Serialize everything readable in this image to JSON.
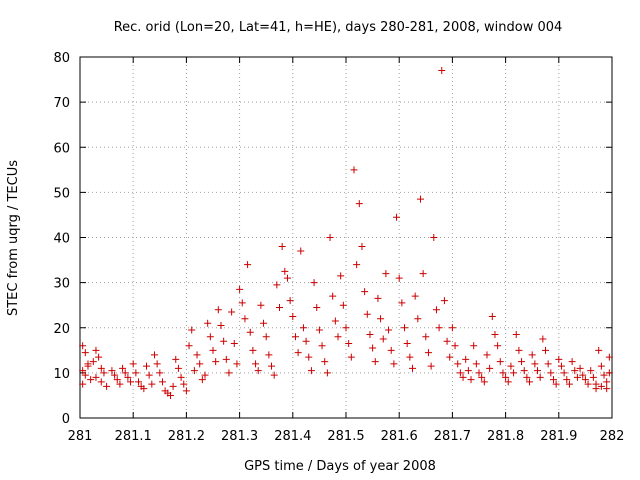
{
  "chart_data": {
    "type": "scatter",
    "title": "Rec. orid (Lon=20, Lat=41, h=HE), days 280-281, 2008, window 004",
    "xlabel": "GPS time / Days of year 2008",
    "ylabel": "STEC from uqrg / TECUs",
    "xlim": [
      281,
      282
    ],
    "ylim": [
      0,
      80
    ],
    "x_ticks": [
      281,
      281.1,
      281.2,
      281.3,
      281.4,
      281.5,
      281.6,
      281.7,
      281.8,
      281.9,
      282
    ],
    "x_tick_labels": [
      "281",
      "281.1",
      "281.2",
      "281.3",
      "281.4",
      "281.5",
      "281.6",
      "281.7",
      "281.8",
      "281.9",
      "282"
    ],
    "y_ticks": [
      0,
      10,
      20,
      30,
      40,
      50,
      60,
      70,
      80
    ],
    "y_tick_labels": [
      "0",
      "10",
      "20",
      "30",
      "40",
      "50",
      "60",
      "70",
      "80"
    ],
    "grid": true,
    "marker": "plus",
    "marker_color": "#cc0000",
    "axis_color": "#000000",
    "grid_color": "#a0a0a0",
    "series": [
      {
        "name": "STEC",
        "points": [
          [
            281.005,
            16.0
          ],
          [
            281.01,
            14.5
          ],
          [
            281.015,
            12.0
          ],
          [
            281.005,
            10.5
          ],
          [
            281.01,
            9.5
          ],
          [
            281.02,
            8.5
          ],
          [
            281.005,
            7.5
          ],
          [
            281.015,
            11.5
          ],
          [
            281.03,
            15.0
          ],
          [
            281.035,
            13.5
          ],
          [
            281.04,
            11.0
          ],
          [
            281.045,
            10.0
          ],
          [
            281.03,
            9.0
          ],
          [
            281.04,
            8.0
          ],
          [
            281.05,
            7.0
          ],
          [
            281.025,
            12.5
          ],
          [
            281.06,
            10.5
          ],
          [
            281.065,
            9.5
          ],
          [
            281.07,
            8.5
          ],
          [
            281.075,
            7.5
          ],
          [
            281.08,
            11.0
          ],
          [
            281.085,
            10.0
          ],
          [
            281.09,
            9.0
          ],
          [
            281.095,
            8.0
          ],
          [
            281.1,
            12.0
          ],
          [
            281.105,
            10.0
          ],
          [
            281.11,
            8.0
          ],
          [
            281.115,
            7.0
          ],
          [
            281.12,
            6.5
          ],
          [
            281.125,
            11.5
          ],
          [
            281.13,
            9.5
          ],
          [
            281.135,
            7.5
          ],
          [
            281.14,
            14.0
          ],
          [
            281.145,
            12.0
          ],
          [
            281.15,
            10.0
          ],
          [
            281.155,
            8.0
          ],
          [
            281.16,
            6.0
          ],
          [
            281.165,
            5.5
          ],
          [
            281.17,
            5.0
          ],
          [
            281.175,
            7.0
          ],
          [
            281.18,
            13.0
          ],
          [
            281.185,
            11.0
          ],
          [
            281.19,
            9.0
          ],
          [
            281.195,
            7.5
          ],
          [
            281.2,
            6.0
          ],
          [
            281.205,
            16.0
          ],
          [
            281.21,
            19.5
          ],
          [
            281.215,
            10.5
          ],
          [
            281.22,
            14.0
          ],
          [
            281.225,
            12.0
          ],
          [
            281.23,
            8.5
          ],
          [
            281.235,
            9.5
          ],
          [
            281.24,
            21.0
          ],
          [
            281.245,
            18.0
          ],
          [
            281.25,
            15.0
          ],
          [
            281.255,
            12.5
          ],
          [
            281.26,
            24.0
          ],
          [
            281.265,
            20.5
          ],
          [
            281.27,
            17.0
          ],
          [
            281.275,
            13.0
          ],
          [
            281.28,
            10.0
          ],
          [
            281.285,
            23.5
          ],
          [
            281.29,
            16.5
          ],
          [
            281.295,
            12.0
          ],
          [
            281.3,
            28.5
          ],
          [
            281.305,
            25.5
          ],
          [
            281.31,
            22.0
          ],
          [
            281.315,
            34.0
          ],
          [
            281.32,
            19.0
          ],
          [
            281.325,
            15.0
          ],
          [
            281.33,
            12.0
          ],
          [
            281.335,
            10.5
          ],
          [
            281.34,
            25.0
          ],
          [
            281.345,
            21.0
          ],
          [
            281.35,
            18.0
          ],
          [
            281.355,
            14.0
          ],
          [
            281.36,
            11.5
          ],
          [
            281.365,
            9.5
          ],
          [
            281.37,
            29.5
          ],
          [
            281.375,
            24.5
          ],
          [
            281.38,
            38.0
          ],
          [
            281.385,
            32.5
          ],
          [
            281.39,
            31.0
          ],
          [
            281.395,
            26.0
          ],
          [
            281.4,
            22.5
          ],
          [
            281.405,
            18.0
          ],
          [
            281.41,
            14.5
          ],
          [
            281.415,
            37.0
          ],
          [
            281.42,
            20.0
          ],
          [
            281.425,
            17.0
          ],
          [
            281.43,
            13.5
          ],
          [
            281.435,
            10.5
          ],
          [
            281.44,
            30.0
          ],
          [
            281.445,
            24.5
          ],
          [
            281.45,
            19.5
          ],
          [
            281.455,
            16.0
          ],
          [
            281.46,
            12.5
          ],
          [
            281.465,
            10.0
          ],
          [
            281.47,
            40.0
          ],
          [
            281.475,
            27.0
          ],
          [
            281.48,
            21.5
          ],
          [
            281.485,
            18.0
          ],
          [
            281.49,
            31.5
          ],
          [
            281.495,
            25.0
          ],
          [
            281.5,
            20.0
          ],
          [
            281.505,
            16.5
          ],
          [
            281.51,
            13.5
          ],
          [
            281.515,
            55.0
          ],
          [
            281.52,
            34.0
          ],
          [
            281.525,
            47.5
          ],
          [
            281.53,
            38.0
          ],
          [
            281.535,
            28.0
          ],
          [
            281.54,
            23.0
          ],
          [
            281.545,
            18.5
          ],
          [
            281.55,
            15.5
          ],
          [
            281.555,
            12.5
          ],
          [
            281.56,
            26.5
          ],
          [
            281.565,
            22.0
          ],
          [
            281.57,
            17.5
          ],
          [
            281.575,
            32.0
          ],
          [
            281.58,
            19.5
          ],
          [
            281.585,
            15.0
          ],
          [
            281.59,
            12.0
          ],
          [
            281.595,
            44.5
          ],
          [
            281.6,
            31.0
          ],
          [
            281.605,
            25.5
          ],
          [
            281.61,
            20.0
          ],
          [
            281.615,
            16.5
          ],
          [
            281.62,
            13.5
          ],
          [
            281.625,
            11.0
          ],
          [
            281.63,
            27.0
          ],
          [
            281.635,
            22.0
          ],
          [
            281.64,
            48.5
          ],
          [
            281.645,
            32.0
          ],
          [
            281.65,
            18.0
          ],
          [
            281.655,
            14.5
          ],
          [
            281.66,
            11.5
          ],
          [
            281.665,
            40.0
          ],
          [
            281.67,
            24.0
          ],
          [
            281.675,
            20.0
          ],
          [
            281.68,
            77.0
          ],
          [
            281.685,
            26.0
          ],
          [
            281.69,
            17.0
          ],
          [
            281.695,
            13.5
          ],
          [
            281.7,
            20.0
          ],
          [
            281.705,
            16.0
          ],
          [
            281.71,
            12.0
          ],
          [
            281.715,
            10.0
          ],
          [
            281.72,
            9.0
          ],
          [
            281.725,
            13.0
          ],
          [
            281.73,
            10.5
          ],
          [
            281.735,
            8.5
          ],
          [
            281.74,
            16.0
          ],
          [
            281.745,
            12.0
          ],
          [
            281.75,
            10.0
          ],
          [
            281.755,
            9.0
          ],
          [
            281.76,
            8.0
          ],
          [
            281.765,
            14.0
          ],
          [
            281.77,
            11.0
          ],
          [
            281.775,
            22.5
          ],
          [
            281.78,
            18.5
          ],
          [
            281.785,
            16.0
          ],
          [
            281.79,
            12.5
          ],
          [
            281.795,
            10.0
          ],
          [
            281.8,
            9.0
          ],
          [
            281.805,
            8.0
          ],
          [
            281.81,
            11.5
          ],
          [
            281.815,
            10.0
          ],
          [
            281.82,
            18.5
          ],
          [
            281.825,
            15.0
          ],
          [
            281.83,
            12.5
          ],
          [
            281.835,
            10.5
          ],
          [
            281.84,
            9.0
          ],
          [
            281.845,
            8.0
          ],
          [
            281.85,
            14.0
          ],
          [
            281.855,
            12.0
          ],
          [
            281.86,
            10.5
          ],
          [
            281.865,
            9.0
          ],
          [
            281.87,
            17.5
          ],
          [
            281.875,
            15.0
          ],
          [
            281.88,
            12.0
          ],
          [
            281.885,
            10.0
          ],
          [
            281.89,
            8.5
          ],
          [
            281.895,
            7.5
          ],
          [
            281.9,
            13.0
          ],
          [
            281.905,
            11.5
          ],
          [
            281.91,
            10.0
          ],
          [
            281.915,
            8.5
          ],
          [
            281.92,
            7.5
          ],
          [
            281.925,
            12.5
          ],
          [
            281.93,
            10.5
          ],
          [
            281.935,
            9.0
          ],
          [
            281.94,
            11.0
          ],
          [
            281.945,
            9.5
          ],
          [
            281.95,
            8.5
          ],
          [
            281.955,
            7.5
          ],
          [
            281.96,
            10.5
          ],
          [
            281.965,
            9.0
          ],
          [
            281.97,
            7.5
          ],
          [
            281.975,
            15.0
          ],
          [
            281.98,
            11.5
          ],
          [
            281.985,
            9.5
          ],
          [
            281.99,
            8.0
          ],
          [
            281.995,
            13.5
          ],
          [
            281.995,
            10.0
          ],
          [
            281.99,
            6.5
          ],
          [
            281.98,
            7.0
          ],
          [
            281.97,
            6.5
          ]
        ]
      }
    ]
  }
}
